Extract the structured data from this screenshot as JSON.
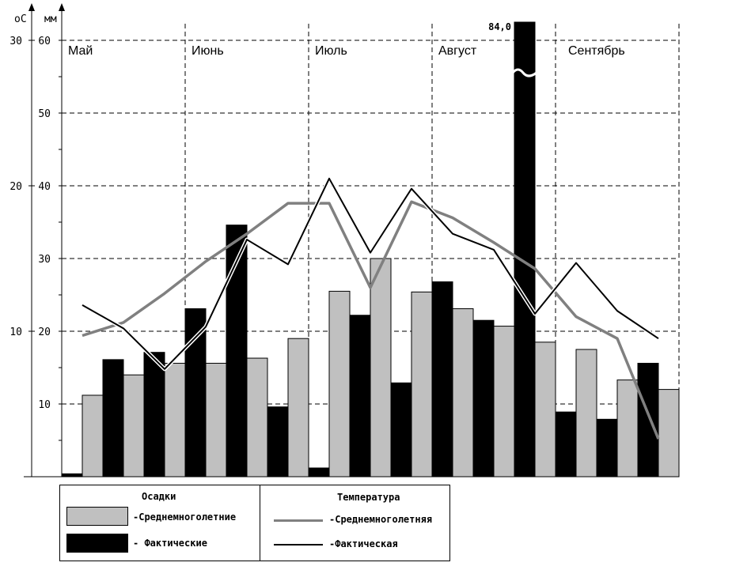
{
  "chart_data": {
    "type": "bar",
    "axes": {
      "temperature_unit": "оС",
      "precipitation_unit": "мм",
      "temperature_ticks": [
        "10",
        "20",
        "30"
      ],
      "precipitation_ticks": [
        "10",
        "20",
        "30",
        "40",
        "50",
        "60"
      ],
      "precipitation_ylim": [
        0,
        60
      ],
      "temperature_ylim": [
        0,
        30
      ],
      "grid": true
    },
    "months": [
      "Май",
      "Июнь",
      "Июль",
      "Август",
      "Сентябрь"
    ],
    "periods_per_month": 3,
    "series": [
      {
        "name": "Среднемноголетние",
        "kind": "precip_mean",
        "color": "#c0c0c0",
        "values": [
          11.2,
          14.0,
          15.6,
          15.6,
          16.3,
          19.0,
          25.5,
          30.0,
          25.4,
          23.1,
          20.7,
          18.5,
          17.5,
          13.3,
          12.0
        ]
      },
      {
        "name": "Фактические",
        "kind": "precip_actual",
        "color": "#000000",
        "values": [
          0.4,
          16.1,
          17.1,
          23.1,
          34.6,
          9.6,
          1.2,
          22.2,
          12.9,
          26.8,
          21.5,
          84.0,
          8.9,
          7.9,
          15.6
        ]
      },
      {
        "name": "Среднемноголетняя",
        "kind": "temp_mean",
        "color": "#808080",
        "values": [
          9.7,
          10.6,
          12.6,
          14.8,
          16.7,
          18.8,
          18.8,
          13.0,
          18.9,
          17.8,
          16.1,
          14.3,
          11.0,
          9.5,
          2.6
        ]
      },
      {
        "name": "Фактическая",
        "kind": "temp_actual",
        "color": "#000000",
        "values": [
          11.8,
          10.2,
          7.4,
          10.3,
          16.3,
          14.6,
          20.5,
          15.4,
          19.8,
          16.7,
          15.6,
          11.2,
          14.7,
          11.4,
          9.5
        ]
      }
    ],
    "annotations": [
      {
        "text": "84,0",
        "series": "precip_actual",
        "index": 11
      }
    ]
  },
  "legend": {
    "precip_title": "Осадки",
    "temp_title": "Температура",
    "precip_mean_label": "-Среднемноголетние",
    "precip_actual_label": "- Фактические",
    "temp_mean_label": "-Среднемноголетняя",
    "temp_actual_label": "-Фактическая"
  }
}
